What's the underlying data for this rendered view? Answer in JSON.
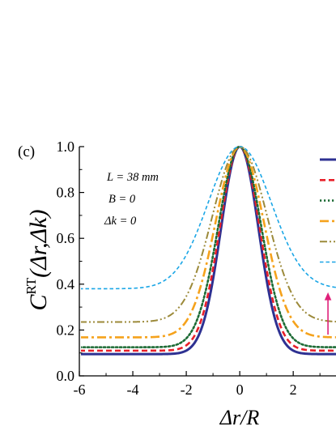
{
  "chart_data": {
    "type": "line",
    "panel_label": "(c)",
    "xlabel": "Δr/R",
    "ylabel": {
      "base": "C",
      "sup": "RT",
      "args": "(Δr,Δk)"
    },
    "xlim": [
      -6,
      3.6
    ],
    "ylim": [
      0.0,
      1.0
    ],
    "xticks": [
      -6,
      -4,
      -2,
      0,
      2
    ],
    "yticks": [
      0.0,
      0.2,
      0.4,
      0.6,
      0.8,
      1.0
    ],
    "ytick_labels": [
      "0.0",
      "0.2",
      "0.4",
      "0.6",
      "0.8",
      "1.0"
    ],
    "grid": false,
    "annotations": [
      "L = 38 mm",
      "B = 0",
      "Δk = 0"
    ],
    "arrow": {
      "x": 3.3,
      "y_from": 0.18,
      "y_to": 0.36,
      "color": "#e0207a"
    },
    "series": [
      {
        "style": "solid",
        "color": "#2e3192",
        "width": 3.0,
        "baseline": 0.095,
        "sigma": 0.7
      },
      {
        "style": "dashed",
        "color": "#e8202a",
        "width": 2.6,
        "baseline": 0.11,
        "sigma": 0.74
      },
      {
        "style": "dotted",
        "color": "#1d6b35",
        "width": 2.6,
        "baseline": 0.125,
        "sigma": 0.8
      },
      {
        "style": "dashdot",
        "color": "#f5a21c",
        "width": 2.6,
        "baseline": 0.168,
        "sigma": 0.9
      },
      {
        "style": "dashdotdot",
        "color": "#9c8a3a",
        "width": 2.0,
        "baseline": 0.235,
        "sigma": 1.02
      },
      {
        "style": "shortdash",
        "color": "#1aa6e6",
        "width": 1.6,
        "baseline": 0.38,
        "sigma": 1.18
      }
    ]
  }
}
